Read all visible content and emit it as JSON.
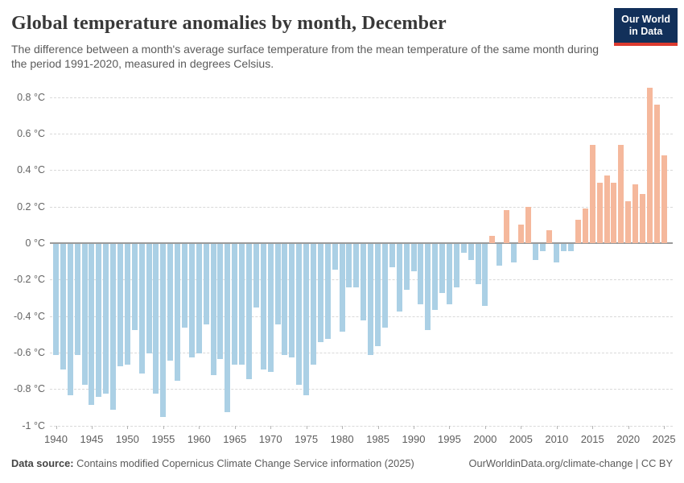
{
  "header": {
    "title": "Global temperature anomalies by month, December",
    "subtitle": "The difference between a month's average surface temperature from the mean temperature of the same month during the period 1991-2020, measured in degrees Celsius.",
    "logo": {
      "line1": "Our World",
      "line2": "in Data"
    }
  },
  "footer": {
    "source_label": "Data source:",
    "source_text": " Contains modified Copernicus Climate Change Service information (2025)",
    "citation": "OurWorldinData.org/climate-change | CC BY"
  },
  "colors": {
    "positive_bar": "#f5b89c",
    "negative_bar": "#abd0e5",
    "logo_navy": "#12305a",
    "logo_red": "#dc3a2f",
    "grid": "#d9d9d9",
    "zero_line": "#9a9a9a"
  },
  "chart_data": {
    "type": "bar",
    "title": "Global temperature anomalies by month, December",
    "xlabel": "",
    "ylabel": "°C",
    "ylim": [
      -1.0,
      0.9
    ],
    "grid": "horizontal-dashed",
    "legend_position": "none",
    "x": [
      1940,
      1941,
      1942,
      1943,
      1944,
      1945,
      1946,
      1947,
      1948,
      1949,
      1950,
      1951,
      1952,
      1953,
      1954,
      1955,
      1956,
      1957,
      1958,
      1959,
      1960,
      1961,
      1962,
      1963,
      1964,
      1965,
      1966,
      1967,
      1968,
      1969,
      1970,
      1971,
      1972,
      1973,
      1974,
      1975,
      1976,
      1977,
      1978,
      1979,
      1980,
      1981,
      1982,
      1983,
      1984,
      1985,
      1986,
      1987,
      1988,
      1989,
      1990,
      1991,
      1992,
      1993,
      1994,
      1995,
      1996,
      1997,
      1998,
      1999,
      2000,
      2001,
      2002,
      2003,
      2004,
      2005,
      2006,
      2007,
      2008,
      2009,
      2010,
      2011,
      2012,
      2013,
      2014,
      2015,
      2016,
      2017,
      2018,
      2019,
      2020,
      2021,
      2022,
      2023,
      2024,
      2025
    ],
    "values": [
      -0.61,
      -0.69,
      -0.83,
      -0.61,
      -0.77,
      -0.88,
      -0.84,
      -0.82,
      -0.91,
      -0.67,
      -0.66,
      -0.47,
      -0.71,
      -0.6,
      -0.82,
      -0.95,
      -0.64,
      -0.75,
      -0.46,
      -0.62,
      -0.6,
      -0.44,
      -0.72,
      -0.63,
      -0.92,
      -0.66,
      -0.66,
      -0.74,
      -0.35,
      -0.69,
      -0.7,
      -0.44,
      -0.61,
      -0.62,
      -0.77,
      -0.83,
      -0.66,
      -0.54,
      -0.52,
      -0.14,
      -0.48,
      -0.24,
      -0.24,
      -0.42,
      -0.61,
      -0.56,
      -0.46,
      -0.13,
      -0.37,
      -0.25,
      -0.15,
      -0.33,
      -0.47,
      -0.36,
      -0.27,
      -0.33,
      -0.24,
      -0.05,
      -0.09,
      -0.22,
      -0.34,
      0.04,
      -0.12,
      0.18,
      -0.1,
      0.1,
      0.2,
      -0.09,
      -0.04,
      0.07,
      -0.1,
      -0.04,
      -0.04,
      0.13,
      0.19,
      0.54,
      0.33,
      0.37,
      0.33,
      0.54,
      0.23,
      0.32,
      0.27,
      0.85,
      0.76,
      0.48
    ],
    "yticks": [
      {
        "value": 0.8,
        "label": "0.8 °C"
      },
      {
        "value": 0.6,
        "label": "0.6 °C"
      },
      {
        "value": 0.4,
        "label": "0.4 °C"
      },
      {
        "value": 0.2,
        "label": "0.2 °C"
      },
      {
        "value": 0,
        "label": "0 °C"
      },
      {
        "value": -0.2,
        "label": "-0.2 °C"
      },
      {
        "value": -0.4,
        "label": "-0.4 °C"
      },
      {
        "value": -0.6,
        "label": "-0.6 °C"
      },
      {
        "value": -0.8,
        "label": "-0.8 °C"
      },
      {
        "value": -1,
        "label": "-1 °C"
      }
    ],
    "xticks": [
      1940,
      1945,
      1950,
      1955,
      1960,
      1965,
      1970,
      1975,
      1980,
      1985,
      1990,
      1995,
      2000,
      2005,
      2010,
      2015,
      2020,
      2025
    ]
  }
}
